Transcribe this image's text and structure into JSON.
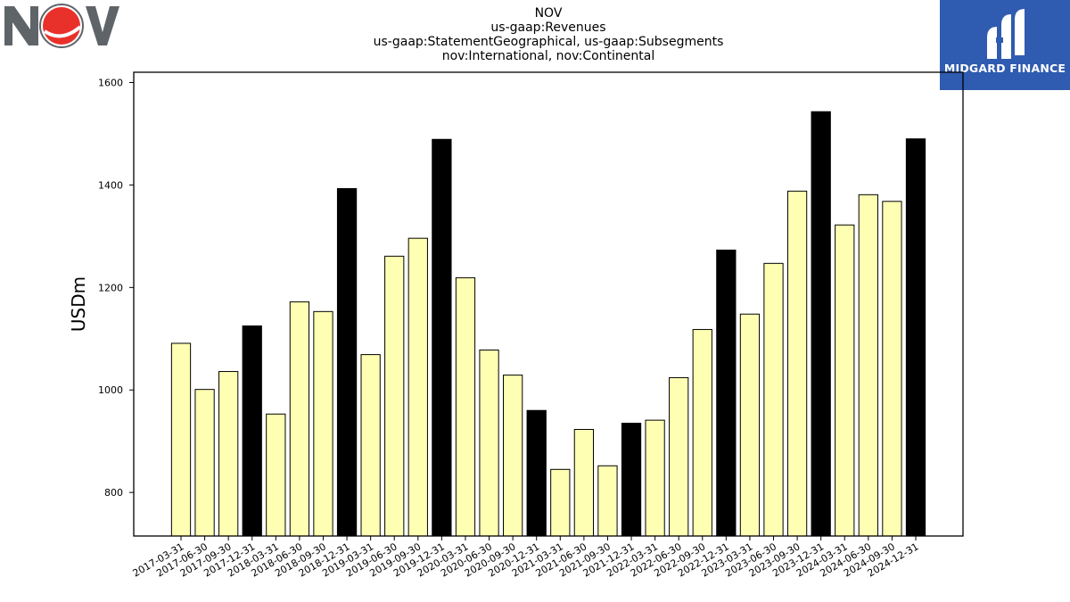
{
  "header": {
    "title_lines": [
      "NOV",
      "us-gaap:Revenues",
      "us-gaap:StatementGeographical, us-gaap:Subsegments",
      "nov:International, nov:Continental"
    ]
  },
  "logos": {
    "left": {
      "text": "NOV",
      "icon": "nov-logo",
      "colors": {
        "gray": "#5f6469",
        "red": "#e8312a"
      }
    },
    "right": {
      "text": "MIDGARD FINANCE",
      "icon": "midgard-finance-logo",
      "background": "#2f5bb0"
    }
  },
  "chart_data": {
    "type": "bar",
    "ylabel": "USDm",
    "xlabel": "",
    "ylim": [
      715,
      1620
    ],
    "yticks": [
      800,
      1000,
      1200,
      1400,
      1600
    ],
    "colors": {
      "quarter": "#ffffb3",
      "year_end": "#000000",
      "edge": "#000000"
    },
    "categories": [
      "2017-03-31",
      "2017-06-30",
      "2017-09-30",
      "2017-12-31",
      "2018-03-31",
      "2018-06-30",
      "2018-09-30",
      "2018-12-31",
      "2019-03-31",
      "2019-06-30",
      "2019-09-30",
      "2019-12-31",
      "2020-03-31",
      "2020-06-30",
      "2020-09-30",
      "2020-12-31",
      "2021-03-31",
      "2021-06-30",
      "2021-09-30",
      "2021-12-31",
      "2022-03-31",
      "2022-06-30",
      "2022-09-30",
      "2022-12-31",
      "2023-03-31",
      "2023-06-30",
      "2023-09-30",
      "2023-12-31",
      "2024-03-31",
      "2024-06-30",
      "2024-09-30",
      "2024-12-31"
    ],
    "values": [
      1091,
      1001,
      1036,
      1125,
      953,
      1172,
      1153,
      1393,
      1069,
      1261,
      1296,
      1489,
      1219,
      1078,
      1029,
      960,
      845,
      923,
      852,
      935,
      941,
      1024,
      1118,
      1273,
      1148,
      1247,
      1388,
      1543,
      1322,
      1381,
      1368,
      1490
    ],
    "highlight": [
      false,
      false,
      false,
      true,
      false,
      false,
      false,
      true,
      false,
      false,
      false,
      true,
      false,
      false,
      false,
      true,
      false,
      false,
      false,
      true,
      false,
      false,
      false,
      true,
      false,
      false,
      false,
      true,
      false,
      false,
      false,
      true
    ]
  }
}
